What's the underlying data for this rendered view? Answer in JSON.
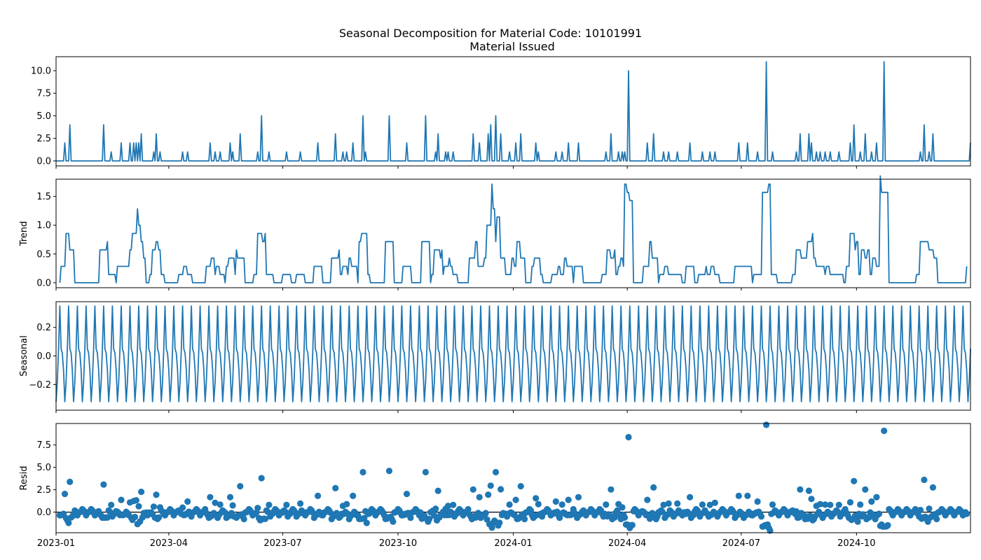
{
  "figure": {
    "suptitle": "Seasonal Decomposition for Material Code: 10101991"
  },
  "colors": {
    "series": "#1f77b4",
    "zero_line": "#000000",
    "axes": "#000000"
  },
  "chart_data": [
    {
      "type": "line",
      "title": "Material Issued",
      "ylabel": "",
      "ylim": [
        -0.55,
        11.55
      ],
      "yticks": [
        0.0,
        2.5,
        5.0,
        7.5,
        10.0
      ],
      "ytick_labels": [
        "0.0",
        "2.5",
        "5.0",
        "7.5",
        "10.0"
      ],
      "xlim": [
        "2023-01-01",
        "2024-12-31"
      ],
      "spikes": [
        [
          "2023-01-08",
          2
        ],
        [
          "2023-01-12",
          4
        ],
        [
          "2023-02-08",
          4
        ],
        [
          "2023-02-14",
          1
        ],
        [
          "2023-02-22",
          2
        ],
        [
          "2023-03-01",
          2
        ],
        [
          "2023-03-04",
          2
        ],
        [
          "2023-03-06",
          2
        ],
        [
          "2023-03-08",
          2
        ],
        [
          "2023-03-10",
          3
        ],
        [
          "2023-03-20",
          1
        ],
        [
          "2023-03-22",
          3
        ],
        [
          "2023-03-25",
          1
        ],
        [
          "2023-04-12",
          1
        ],
        [
          "2023-04-16",
          1
        ],
        [
          "2023-05-04",
          2
        ],
        [
          "2023-05-08",
          1
        ],
        [
          "2023-05-12",
          1
        ],
        [
          "2023-05-20",
          2
        ],
        [
          "2023-05-22",
          1
        ],
        [
          "2023-05-28",
          3
        ],
        [
          "2023-06-11",
          1
        ],
        [
          "2023-06-14",
          5
        ],
        [
          "2023-06-20",
          1
        ],
        [
          "2023-07-04",
          1
        ],
        [
          "2023-07-15",
          1
        ],
        [
          "2023-07-29",
          2
        ],
        [
          "2023-08-12",
          3
        ],
        [
          "2023-08-18",
          1
        ],
        [
          "2023-08-21",
          1
        ],
        [
          "2023-08-26",
          2
        ],
        [
          "2023-09-03",
          5
        ],
        [
          "2023-09-05",
          1
        ],
        [
          "2023-09-24",
          5
        ],
        [
          "2023-10-08",
          2
        ],
        [
          "2023-10-23",
          5
        ],
        [
          "2023-10-31",
          1
        ],
        [
          "2023-11-02",
          3
        ],
        [
          "2023-11-08",
          1
        ],
        [
          "2023-11-10",
          1
        ],
        [
          "2023-11-14",
          1
        ],
        [
          "2023-11-30",
          3
        ],
        [
          "2023-12-05",
          2
        ],
        [
          "2023-12-12",
          3
        ],
        [
          "2023-12-14",
          4
        ],
        [
          "2023-12-18",
          5
        ],
        [
          "2023-12-22",
          3
        ],
        [
          "2023-12-29",
          1
        ],
        [
          "2024-01-03",
          2
        ],
        [
          "2024-01-07",
          3
        ],
        [
          "2024-01-19",
          2
        ],
        [
          "2024-01-21",
          1
        ],
        [
          "2024-02-04",
          1
        ],
        [
          "2024-02-09",
          1
        ],
        [
          "2024-02-14",
          2
        ],
        [
          "2024-02-22",
          2
        ],
        [
          "2024-03-15",
          1
        ],
        [
          "2024-03-19",
          3
        ],
        [
          "2024-03-25",
          1
        ],
        [
          "2024-03-28",
          1
        ],
        [
          "2024-03-30",
          1
        ],
        [
          "2024-04-02",
          10
        ],
        [
          "2024-04-17",
          2
        ],
        [
          "2024-04-22",
          3
        ],
        [
          "2024-04-30",
          1
        ],
        [
          "2024-05-04",
          1
        ],
        [
          "2024-05-11",
          1
        ],
        [
          "2024-05-21",
          2
        ],
        [
          "2024-05-31",
          1
        ],
        [
          "2024-06-06",
          1
        ],
        [
          "2024-06-10",
          1
        ],
        [
          "2024-06-29",
          2
        ],
        [
          "2024-07-06",
          2
        ],
        [
          "2024-07-14",
          1
        ],
        [
          "2024-07-21",
          11
        ],
        [
          "2024-07-26",
          1
        ],
        [
          "2024-08-14",
          1
        ],
        [
          "2024-08-17",
          3
        ],
        [
          "2024-08-24",
          3
        ],
        [
          "2024-08-26",
          2
        ],
        [
          "2024-08-30",
          1
        ],
        [
          "2024-09-02",
          1
        ],
        [
          "2024-09-06",
          1
        ],
        [
          "2024-09-10",
          1
        ],
        [
          "2024-09-17",
          1
        ],
        [
          "2024-09-26",
          2
        ],
        [
          "2024-09-29",
          4
        ],
        [
          "2024-10-04",
          1
        ],
        [
          "2024-10-08",
          3
        ],
        [
          "2024-10-13",
          1
        ],
        [
          "2024-10-17",
          2
        ],
        [
          "2024-10-23",
          11
        ],
        [
          "2024-11-21",
          1
        ],
        [
          "2024-11-24",
          4
        ],
        [
          "2024-11-28",
          1
        ],
        [
          "2024-12-01",
          3
        ],
        [
          "2024-12-31",
          2
        ]
      ]
    },
    {
      "type": "line",
      "title": "",
      "ylabel": "Trend",
      "ylim": [
        -0.086,
        1.8
      ],
      "yticks": [
        0.0,
        0.5,
        1.0,
        1.5
      ],
      "ytick_labels": [
        "0.0",
        "0.5",
        "1.0",
        "1.5"
      ],
      "xlim": [
        "2023-01-01",
        "2024-12-31"
      ],
      "moving_average_window_days": 7,
      "note_values": "centered rolling mean of Material Issued (values 0.0 to 1.71)"
    },
    {
      "type": "line",
      "title": "",
      "ylabel": "Seasonal",
      "ylim": [
        -0.38,
        0.38
      ],
      "yticks": [
        -0.2,
        0.0,
        0.2
      ],
      "ytick_labels": [
        "−0.2",
        "0.0",
        "0.2"
      ],
      "xlim": [
        "2023-01-01",
        "2024-12-31"
      ],
      "period_days": 7,
      "weekly_pattern": [
        -0.32,
        -0.18,
        0.05,
        0.35,
        0.05,
        0.02,
        -0.1
      ]
    },
    {
      "type": "scatter",
      "title": "",
      "ylabel": "Resid",
      "ylim": [
        -2.3,
        9.9
      ],
      "yticks": [
        0.0,
        2.5,
        5.0,
        7.5
      ],
      "ytick_labels": [
        "0.0",
        "2.5",
        "5.0",
        "7.5"
      ],
      "xlim": [
        "2023-01-01",
        "2024-12-31"
      ],
      "zero_line": 0.0,
      "value_range": [
        -1.7,
        9.4
      ]
    }
  ],
  "x_axis": {
    "ticks": [
      "2023-01-01",
      "2023-04-01",
      "2023-07-01",
      "2023-10-01",
      "2024-01-01",
      "2024-04-01",
      "2024-07-01",
      "2024-10-01"
    ],
    "tick_labels": [
      "2023-01",
      "2023-04",
      "2023-07",
      "2023-10",
      "2024-01",
      "2024-04",
      "2024-07",
      "2024-10"
    ]
  }
}
